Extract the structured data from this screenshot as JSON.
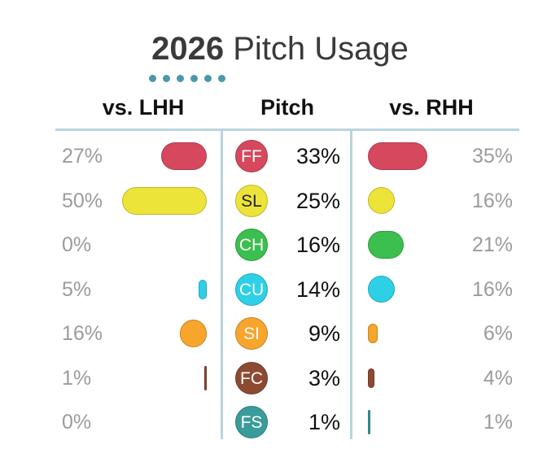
{
  "title": {
    "year": "2026",
    "text": "Pitch Usage"
  },
  "headers": {
    "lhh": "vs. LHH",
    "pitch": "Pitch",
    "rhh": "vs. RHH"
  },
  "chart_data": {
    "type": "table",
    "columns": [
      "vs. LHH",
      "Pitch",
      "vs. RHH"
    ],
    "rows": [
      {
        "pitch": "FF",
        "usage": "33%",
        "lhh": "27%",
        "rhh": "35%",
        "lhh_value": 27,
        "rhh_value": 35,
        "color": "#d6485d",
        "text_color": "#ffffff"
      },
      {
        "pitch": "SL",
        "usage": "25%",
        "lhh": "50%",
        "rhh": "16%",
        "lhh_value": 50,
        "rhh_value": 16,
        "color": "#ede43a",
        "text_color": "#222222"
      },
      {
        "pitch": "CH",
        "usage": "16%",
        "lhh": "0%",
        "rhh": "21%",
        "lhh_value": 0,
        "rhh_value": 21,
        "color": "#3bbf4f",
        "text_color": "#ffffff"
      },
      {
        "pitch": "CU",
        "usage": "14%",
        "lhh": "5%",
        "rhh": "16%",
        "lhh_value": 5,
        "rhh_value": 16,
        "color": "#2ed0e6",
        "text_color": "#ffffff"
      },
      {
        "pitch": "SI",
        "usage": "9%",
        "lhh": "16%",
        "rhh": "6%",
        "lhh_value": 16,
        "rhh_value": 6,
        "color": "#f7a52c",
        "text_color": "#ffffff"
      },
      {
        "pitch": "FC",
        "usage": "3%",
        "lhh": "1%",
        "rhh": "4%",
        "lhh_value": 1,
        "rhh_value": 4,
        "color": "#8c4a33",
        "text_color": "#ffffff"
      },
      {
        "pitch": "FS",
        "usage": "1%",
        "lhh": "0%",
        "rhh": "1%",
        "lhh_value": 0,
        "rhh_value": 1,
        "color": "#3a9c9a",
        "text_color": "#ffffff"
      }
    ]
  }
}
